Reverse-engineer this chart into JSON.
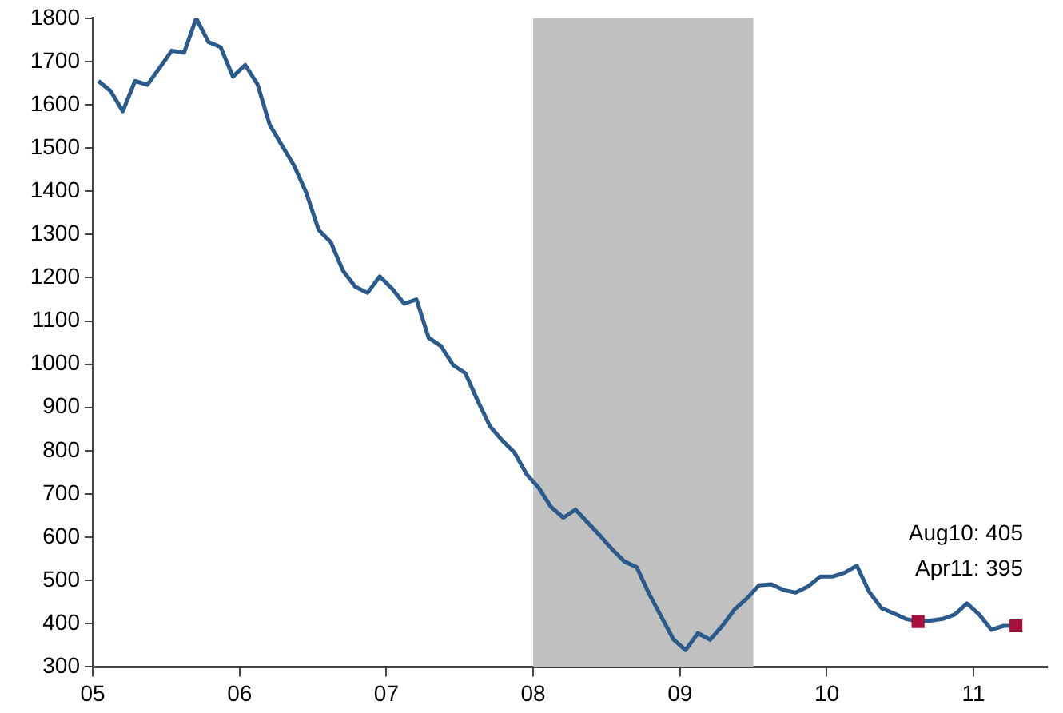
{
  "chart_data": {
    "type": "line",
    "xlim": [
      "2005-01-01",
      "2011-07-01"
    ],
    "xticks": [
      {
        "value": "2005",
        "label": "05"
      },
      {
        "value": "2006",
        "label": "06"
      },
      {
        "value": "2007",
        "label": "07"
      },
      {
        "value": "2008",
        "label": "08"
      },
      {
        "value": "2009",
        "label": "09"
      },
      {
        "value": "2010",
        "label": "10"
      },
      {
        "value": "2011",
        "label": "11"
      }
    ],
    "ylim": [
      300,
      1800
    ],
    "yticks": [
      300,
      400,
      500,
      600,
      700,
      800,
      900,
      1000,
      1100,
      1200,
      1300,
      1400,
      1500,
      1600,
      1700,
      1800
    ],
    "grid": false,
    "legend": false,
    "bands": [
      {
        "axis": "x",
        "from": "2008-01-01",
        "to": "2009-07-01",
        "color": "#c0c0c0"
      }
    ],
    "annotations": [
      "Aug10: 405",
      "Apr11: 395"
    ],
    "series": [
      {
        "color": "#2a5b8c",
        "marker": "none",
        "line_style": "solid",
        "x": [
          "2005-01-15",
          "2005-02-15",
          "2005-03-15",
          "2005-04-15",
          "2005-05-15",
          "2005-06-15",
          "2005-07-15",
          "2005-08-15",
          "2005-09-15",
          "2005-10-15",
          "2005-11-15",
          "2005-12-15",
          "2006-01-15",
          "2006-02-15",
          "2006-03-15",
          "2006-04-15",
          "2006-05-15",
          "2006-06-15",
          "2006-07-15",
          "2006-08-15",
          "2006-09-15",
          "2006-10-15",
          "2006-11-15",
          "2006-12-15",
          "2007-01-15",
          "2007-02-15",
          "2007-03-15",
          "2007-04-15",
          "2007-05-15",
          "2007-06-15",
          "2007-07-15",
          "2007-08-15",
          "2007-09-15",
          "2007-10-15",
          "2007-11-15",
          "2007-12-15",
          "2008-01-15",
          "2008-02-15",
          "2008-03-15",
          "2008-04-15",
          "2008-05-15",
          "2008-06-15",
          "2008-07-15",
          "2008-08-15",
          "2008-09-15",
          "2008-10-15",
          "2008-11-15",
          "2008-12-15",
          "2009-01-15",
          "2009-02-15",
          "2009-03-15",
          "2009-04-15",
          "2009-05-15",
          "2009-06-15",
          "2009-07-15",
          "2009-08-15",
          "2009-09-15",
          "2009-10-15",
          "2009-11-15",
          "2009-12-15",
          "2010-01-15",
          "2010-02-15",
          "2010-03-15",
          "2010-04-15",
          "2010-05-15",
          "2010-06-15",
          "2010-07-15",
          "2010-08-15",
          "2010-09-15",
          "2010-10-15",
          "2010-11-15",
          "2010-12-15",
          "2011-01-15",
          "2011-02-15",
          "2011-03-15",
          "2011-04-15"
        ],
        "values": [
          1655,
          1632,
          1585,
          1655,
          1646,
          1685,
          1725,
          1720,
          1800,
          1745,
          1733,
          1665,
          1692,
          1648,
          1554,
          1506,
          1459,
          1396,
          1311,
          1282,
          1216,
          1179,
          1165,
          1203,
          1175,
          1140,
          1150,
          1061,
          1042,
          998,
          979,
          916,
          857,
          824,
          796,
          746,
          714,
          670,
          645,
          664,
          634,
          604,
          572,
          544,
          531,
          470,
          417,
          364,
          339,
          378,
          363,
          395,
          433,
          458,
          489,
          491,
          478,
          472,
          486,
          509,
          509,
          518,
          534,
          474,
          436,
          424,
          411,
          405,
          407,
          411,
          421,
          447,
          421,
          386,
          395,
          395
        ]
      },
      {
        "type": "scatter",
        "color": "#a6113c",
        "marker": "square",
        "x": [
          "2010-08-15",
          "2011-04-15"
        ],
        "values": [
          405,
          395
        ]
      }
    ]
  }
}
